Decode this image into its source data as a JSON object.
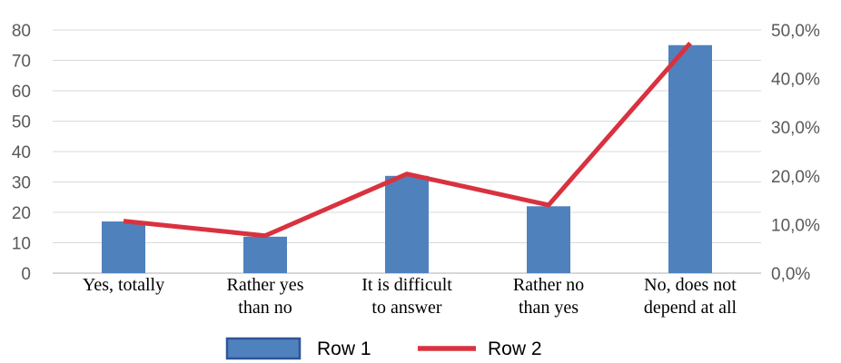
{
  "chart_data": {
    "type": "bar",
    "categories": [
      [
        "Yes, totally"
      ],
      [
        "Rather yes",
        "than no"
      ],
      [
        "It is difficult",
        "to answer"
      ],
      [
        "Rather no",
        "than yes"
      ],
      [
        "No, does not",
        "depend at all"
      ]
    ],
    "series": [
      {
        "name": "Row 1",
        "type": "bar",
        "axis": "left",
        "color": "#4f81bd",
        "values": [
          17,
          12,
          32,
          22,
          75
        ]
      },
      {
        "name": "Row 2",
        "type": "line",
        "axis": "right",
        "color": "#d9323f",
        "values": [
          10.7,
          7.7,
          20.4,
          14.0,
          47.3
        ]
      }
    ],
    "left_axis": {
      "ylim": [
        0,
        80
      ],
      "ticks": [
        "0",
        "10",
        "20",
        "30",
        "40",
        "50",
        "60",
        "70",
        "80"
      ]
    },
    "right_axis": {
      "ylim": [
        0,
        50
      ],
      "ticks": [
        "0,0%",
        "10,0%",
        "20,0%",
        "30,0%",
        "40,0%",
        "50,0%"
      ]
    },
    "grid": true,
    "legend_position": "bottom"
  }
}
